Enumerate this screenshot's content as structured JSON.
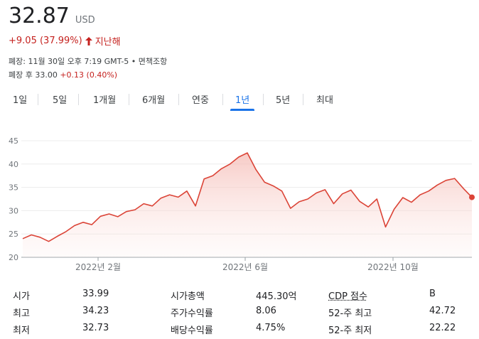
{
  "quote": {
    "price": "32.87",
    "currency": "USD",
    "change": "+9.05 (37.99%)",
    "period": "지난해",
    "closed_line": "폐장: 11월 30일 오후 7:19 GMT-5 • 면책조항",
    "after_hours_label": "폐장 후 33.00",
    "after_hours_delta": "+0.13 (0.40%)"
  },
  "tabs": [
    {
      "label": "1일"
    },
    {
      "label": "5일"
    },
    {
      "label": "1개월"
    },
    {
      "label": "6개월"
    },
    {
      "label": "연중"
    },
    {
      "label": "1년"
    },
    {
      "label": "5년"
    },
    {
      "label": "최대"
    }
  ],
  "active_tab": "1년",
  "colors": {
    "line": "#db4437",
    "fill": "#fbe4e2",
    "active": "#1a73e8",
    "negative": "#c5221f"
  },
  "chart_data": {
    "type": "area",
    "ylim": [
      20,
      45
    ],
    "yticks": [
      "45",
      "40",
      "35",
      "30",
      "25",
      "20"
    ],
    "xlabels": [
      "2022년 2월",
      "2022년 6월",
      "2022년 10월"
    ],
    "x": [
      "2021-12-01",
      "2021-12-08",
      "2021-12-15",
      "2021-12-22",
      "2021-12-29",
      "2022-01-05",
      "2022-01-12",
      "2022-01-19",
      "2022-01-26",
      "2022-02-02",
      "2022-02-09",
      "2022-02-16",
      "2022-02-23",
      "2022-03-02",
      "2022-03-09",
      "2022-03-16",
      "2022-03-23",
      "2022-03-30",
      "2022-04-06",
      "2022-04-13",
      "2022-04-20",
      "2022-04-27",
      "2022-05-04",
      "2022-05-11",
      "2022-05-18",
      "2022-05-25",
      "2022-06-01",
      "2022-06-08",
      "2022-06-15",
      "2022-06-22",
      "2022-06-29",
      "2022-07-06",
      "2022-07-13",
      "2022-07-20",
      "2022-07-27",
      "2022-08-03",
      "2022-08-10",
      "2022-08-17",
      "2022-08-24",
      "2022-08-31",
      "2022-09-07",
      "2022-09-14",
      "2022-09-21",
      "2022-09-28",
      "2022-10-05",
      "2022-10-12",
      "2022-10-19",
      "2022-10-26",
      "2022-11-02",
      "2022-11-09",
      "2022-11-16",
      "2022-11-23",
      "2022-11-30"
    ],
    "series": [
      {
        "values": [
          24.0,
          24.8,
          24.3,
          23.4,
          24.5,
          25.5,
          26.8,
          27.5,
          27.0,
          28.8,
          29.3,
          28.7,
          29.8,
          30.2,
          31.5,
          31.0,
          32.7,
          33.4,
          32.9,
          34.2,
          31.0,
          36.8,
          37.5,
          39.0,
          40.0,
          41.5,
          42.4,
          38.8,
          36.1,
          35.3,
          34.2,
          30.5,
          31.9,
          32.5,
          33.8,
          34.5,
          31.5,
          33.6,
          34.4,
          32.0,
          30.8,
          32.5,
          26.5,
          30.3,
          32.8,
          31.8,
          33.4,
          34.2,
          35.5,
          36.5,
          36.9,
          34.8,
          32.87
        ]
      }
    ]
  },
  "stats": [
    {
      "label": "시가",
      "value": "33.99"
    },
    {
      "label": "최고",
      "value": "34.23"
    },
    {
      "label": "최저",
      "value": "32.73"
    },
    {
      "label": "시가총액",
      "value": "445.30억"
    },
    {
      "label": "주가수익률",
      "value": "8.06"
    },
    {
      "label": "배당수익률",
      "value": "4.75%"
    },
    {
      "label": "CDP 점수",
      "value": "B"
    },
    {
      "label": "52-주 최고",
      "value": "42.72"
    },
    {
      "label": "52-주 최저",
      "value": "22.22"
    }
  ]
}
